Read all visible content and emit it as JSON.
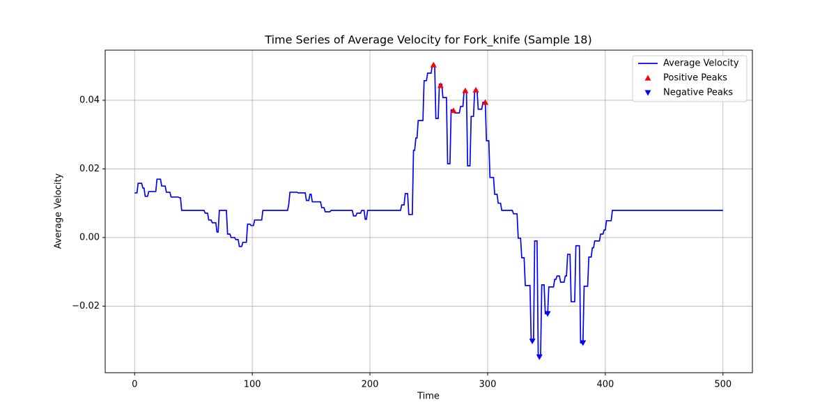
{
  "chart_data": {
    "type": "line",
    "title": "Time Series of Average Velocity for Fork_knife (Sample 18)",
    "x_label": "Time",
    "y_label": "Average Velocity",
    "xlim": [
      -25,
      525
    ],
    "ylim": [
      -0.0394,
      0.0546
    ],
    "xticks": [
      0,
      100,
      200,
      300,
      400,
      500
    ],
    "yticks": [
      {
        "value": -0.02,
        "label": "−0.02"
      },
      {
        "value": 0,
        "label": "0.00"
      },
      0.02,
      0.04
    ],
    "grid": true,
    "legend": "upper right",
    "series": [
      {
        "name": "Average Velocity",
        "type": "line",
        "color": "#0000ff",
        "x": [
          0,
          2,
          3,
          6,
          7,
          8,
          9,
          11,
          12,
          18,
          19,
          22,
          23,
          26,
          27,
          30,
          31,
          37,
          38,
          39,
          40,
          59,
          60,
          62,
          63,
          65,
          66,
          69,
          70,
          71,
          72,
          78,
          79,
          81,
          82,
          85,
          86,
          88,
          89,
          91,
          92,
          95,
          96,
          98,
          99,
          101,
          102,
          108,
          109,
          130,
          131,
          132,
          138,
          139,
          145,
          146,
          148,
          149,
          150,
          151,
          158,
          159,
          161,
          162,
          166,
          167,
          185,
          186,
          188,
          189,
          192,
          193,
          195,
          196,
          197,
          198,
          226,
          227,
          229,
          230,
          232,
          233,
          236,
          237,
          238,
          239,
          240,
          241,
          245,
          246,
          248,
          249,
          252,
          253,
          255,
          256,
          258,
          259,
          261,
          262,
          265,
          266,
          268,
          269,
          271,
          272,
          276,
          277,
          279,
          280,
          282,
          283,
          285,
          286,
          288,
          289,
          291,
          292,
          295,
          296,
          298,
          299,
          301,
          302,
          305,
          306,
          308,
          309,
          311,
          312,
          321,
          322,
          325,
          326,
          328,
          329,
          331,
          332,
          336,
          337,
          339,
          340,
          342,
          343,
          345,
          346,
          348,
          349,
          351,
          352,
          356,
          357,
          358,
          359,
          361,
          362,
          365,
          366,
          367,
          368,
          370,
          371,
          374,
          375,
          378,
          379,
          381,
          382,
          385,
          386,
          388,
          389,
          390,
          391,
          395,
          396,
          398,
          399,
          400,
          401,
          405,
          406,
          500
        ],
        "values": [
          0.013,
          0.013,
          0.0158,
          0.0158,
          0.0144,
          0.0144,
          0.012,
          0.012,
          0.0134,
          0.0134,
          0.017,
          0.017,
          0.015,
          0.015,
          0.0132,
          0.0132,
          0.0118,
          0.0118,
          0.0116,
          0.0116,
          0.0079,
          0.0079,
          0.0071,
          0.0071,
          0.0051,
          0.0051,
          0.0043,
          0.0043,
          0.0016,
          0.0016,
          0.0079,
          0.0079,
          0.001,
          0.001,
          0,
          0,
          -0.0006,
          -0.0006,
          -0.0026,
          -0.0026,
          -0.0014,
          -0.0014,
          0.0039,
          0.0039,
          0.0035,
          0.0035,
          0.0051,
          0.0051,
          0.0079,
          0.0079,
          0.0097,
          0.0132,
          0.0132,
          0.013,
          0.013,
          0.0108,
          0.0108,
          0.0126,
          0.0126,
          0.0104,
          0.0104,
          0.0087,
          0.0087,
          0.0075,
          0.0075,
          0.0079,
          0.0079,
          0.0063,
          0.0063,
          0.0071,
          0.0071,
          0.0079,
          0.0079,
          0.0053,
          0.0053,
          0.0079,
          0.0079,
          0.0095,
          0.0095,
          0.0128,
          0.0128,
          0.0067,
          0.0067,
          0.0254,
          0.0254,
          0.029,
          0.029,
          0.0341,
          0.0341,
          0.0457,
          0.0457,
          0.0479,
          0.0479,
          0.0503,
          0.0503,
          0.0347,
          0.0347,
          0.0447,
          0.0447,
          0.0408,
          0.0408,
          0.0215,
          0.0215,
          0.0372,
          0.0372,
          0.0363,
          0.0363,
          0.0382,
          0.0382,
          0.0428,
          0.0428,
          0.0209,
          0.0209,
          0.0353,
          0.0353,
          0.043,
          0.043,
          0.0374,
          0.0374,
          0.0394,
          0.0394,
          0.0282,
          0.0282,
          0.0175,
          0.0175,
          0.0126,
          0.0126,
          0.01,
          0.01,
          0.0079,
          0.0079,
          0.0069,
          0.0069,
          -0.0002,
          -0.0002,
          -0.0059,
          -0.0059,
          -0.014,
          -0.014,
          -0.0302,
          -0.0302,
          -0.001,
          -0.001,
          -0.0347,
          -0.0347,
          -0.0138,
          -0.0138,
          -0.0222,
          -0.0222,
          -0.0144,
          -0.0144,
          -0.0122,
          -0.0122,
          -0.0112,
          -0.0112,
          -0.013,
          -0.013,
          -0.0112,
          -0.0112,
          -0.0049,
          -0.0049,
          -0.0187,
          -0.0187,
          -0.0024,
          -0.0024,
          -0.0307,
          -0.0307,
          -0.0142,
          -0.0142,
          -0.0057,
          -0.0057,
          -0.003,
          -0.003,
          -0.001,
          -0.001,
          0.001,
          0.001,
          0.0022,
          0.0022,
          0.0049,
          0.0049,
          0.0079,
          0.0079
        ]
      },
      {
        "name": "Positive Peaks",
        "type": "scatter",
        "marker": "^",
        "color": "#ff0000",
        "x": [
          254,
          260,
          271,
          281,
          290,
          298
        ],
        "values": [
          0.0503,
          0.0443,
          0.037,
          0.0428,
          0.043,
          0.0394
        ]
      },
      {
        "name": "Negative Peaks",
        "type": "scatter",
        "marker": "v",
        "color": "#0000ff",
        "x": [
          338,
          344,
          351,
          381
        ],
        "values": [
          -0.0302,
          -0.0348,
          -0.0222,
          -0.0307
        ]
      }
    ]
  }
}
